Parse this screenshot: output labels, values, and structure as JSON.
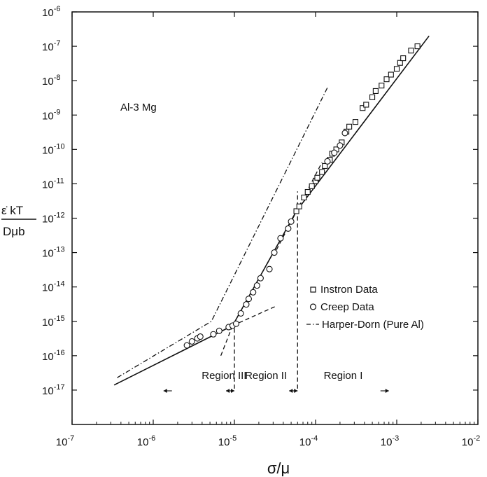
{
  "chart_data": {
    "type": "scatter",
    "x_scale": "log",
    "y_scale": "log",
    "xlabel": "σ/μ",
    "ylabel_top": "ε̇ kT",
    "ylabel_bottom": "Dμb",
    "xlim": [
      1e-07,
      0.01
    ],
    "ylim": [
      1e-18,
      1e-06
    ],
    "x_ticks": [
      {
        "base": "10",
        "exp": "-7",
        "value": 1e-07
      },
      {
        "base": "10",
        "exp": "-6",
        "value": 1e-06
      },
      {
        "base": "10",
        "exp": "-5",
        "value": 1e-05
      },
      {
        "base": "10",
        "exp": "-4",
        "value": 0.0001
      },
      {
        "base": "10",
        "exp": "-3",
        "value": 0.001
      },
      {
        "base": "10",
        "exp": "-2",
        "value": 0.01
      }
    ],
    "y_ticks": [
      {
        "base": "10",
        "exp": "-6",
        "value": 1e-06
      },
      {
        "base": "10",
        "exp": "-7",
        "value": 1e-07
      },
      {
        "base": "10",
        "exp": "-8",
        "value": 1e-08
      },
      {
        "base": "10",
        "exp": "-9",
        "value": 1e-09
      },
      {
        "base": "10",
        "exp": "-10",
        "value": 1e-10
      },
      {
        "base": "10",
        "exp": "-11",
        "value": 1e-11
      },
      {
        "base": "10",
        "exp": "-12",
        "value": 1e-12
      },
      {
        "base": "10",
        "exp": "-13",
        "value": 1e-13
      },
      {
        "base": "10",
        "exp": "-14",
        "value": 1e-14
      },
      {
        "base": "10",
        "exp": "-15",
        "value": 1e-15
      },
      {
        "base": "10",
        "exp": "-16",
        "value": 1e-16
      },
      {
        "base": "10",
        "exp": "-17",
        "value": 1e-17
      }
    ],
    "annotation": "Al-3 Mg",
    "legend": {
      "placement": "right",
      "entries": [
        "Instron Data",
        "Creep Data",
        "Harper-Dorn (Pure Al)"
      ]
    },
    "series": [
      {
        "name": "Instron Data",
        "marker": "square",
        "points": [
          [
            5.8e-05,
            1.6e-12
          ],
          [
            6.3e-05,
            2.2e-12
          ],
          [
            7.2e-05,
            4e-12
          ],
          [
            8e-05,
            5.8e-12
          ],
          [
            9e-05,
            8.5e-12
          ],
          [
            0.0001,
            1.2e-11
          ],
          [
            0.000105,
            1.5e-11
          ],
          [
            0.00012,
            2.2e-11
          ],
          [
            0.00013,
            3.3e-11
          ],
          [
            0.00015,
            5e-11
          ],
          [
            0.00016,
            7.5e-11
          ],
          [
            0.00018,
            1e-10
          ],
          [
            0.00021,
            1.6e-10
          ],
          [
            0.00024,
            3.3e-10
          ],
          [
            0.00026,
            4.6e-10
          ],
          [
            0.00031,
            6.3e-10
          ],
          [
            0.00038,
            1.6e-09
          ],
          [
            0.00042,
            2e-09
          ],
          [
            0.0005,
            3.3e-09
          ],
          [
            0.00055,
            5e-09
          ],
          [
            0.00065,
            7.2e-09
          ],
          [
            0.00075,
            1.1e-08
          ],
          [
            0.00085,
            1.5e-08
          ],
          [
            0.001,
            2.2e-08
          ],
          [
            0.0011,
            3.3e-08
          ],
          [
            0.0012,
            4.5e-08
          ],
          [
            0.0015,
            7.5e-08
          ],
          [
            0.0018,
            1e-07
          ]
        ]
      },
      {
        "name": "Creep Data",
        "marker": "circle",
        "points": [
          [
            2.6e-06,
            2e-16
          ],
          [
            3e-06,
            2.6e-16
          ],
          [
            3.5e-06,
            3.2e-16
          ],
          [
            3.8e-06,
            3.6e-16
          ],
          [
            5.5e-06,
            4.2e-16
          ],
          [
            6.5e-06,
            5.3e-16
          ],
          [
            8.5e-06,
            6.8e-16
          ],
          [
            9.5e-06,
            7.5e-16
          ],
          [
            1.05e-05,
            8.5e-16
          ],
          [
            1.2e-05,
            1.7e-15
          ],
          [
            1.4e-05,
            3.1e-15
          ],
          [
            1.5e-05,
            4.5e-15
          ],
          [
            1.7e-05,
            7e-15
          ],
          [
            1.9e-05,
            1.1e-14
          ],
          [
            2.1e-05,
            1.8e-14
          ],
          [
            2.7e-05,
            3.3e-14
          ],
          [
            3.1e-05,
            1e-13
          ],
          [
            3.7e-05,
            2.6e-13
          ],
          [
            4.6e-05,
            5e-13
          ],
          [
            5e-05,
            8e-13
          ],
          [
            0.00014,
            4.5e-11
          ],
          [
            0.00017,
            8e-11
          ],
          [
            0.0002,
            1.3e-10
          ],
          [
            0.00023,
            3e-10
          ]
        ]
      }
    ],
    "lines": [
      {
        "name": "fit-solid",
        "style": "solid",
        "points": [
          [
            3.3e-07,
            1.4e-17
          ],
          [
            9.5e-06,
            7.5e-16
          ],
          [
            5.8e-05,
            1.6e-12
          ],
          [
            0.0025,
            2e-07
          ]
        ]
      },
      {
        "name": "harper-dorn",
        "style": "dashdot",
        "points": [
          [
            3.6e-07,
            2.3e-17
          ],
          [
            5.2e-06,
            1e-15
          ],
          [
            0.00014,
            6.3e-09
          ]
        ]
      },
      {
        "name": "region-iii-extrapolation",
        "style": "dashed",
        "points": [
          [
            9.5e-06,
            7.5e-16
          ],
          [
            3.3e-05,
            2.8e-15
          ]
        ]
      },
      {
        "name": "region-ii-lower-extrapolation",
        "style": "dashed",
        "points": [
          [
            6.8e-06,
            1e-16
          ],
          [
            9.5e-06,
            7.5e-16
          ]
        ]
      },
      {
        "name": "region-ii-upper-extrapolation",
        "style": "dashed",
        "points": [
          [
            3.3e-05,
            1.2e-13
          ],
          [
            0.00012,
            4.2e-11
          ]
        ]
      }
    ],
    "boundaries": [
      {
        "x": 1e-05,
        "y_from": 1.1e-17,
        "y_to": 1e-15
      },
      {
        "x": 6e-05,
        "y_from": 1.1e-17,
        "y_to": 6e-12
      }
    ],
    "regions": [
      {
        "label": "Region III",
        "x_from": 1.7e-06,
        "x_to": 1e-05
      },
      {
        "label": "Region II",
        "x_from": 1e-05,
        "x_to": 6e-05
      },
      {
        "label": "Region I",
        "x_from": 6e-05,
        "x_to": 0.0008
      }
    ]
  }
}
